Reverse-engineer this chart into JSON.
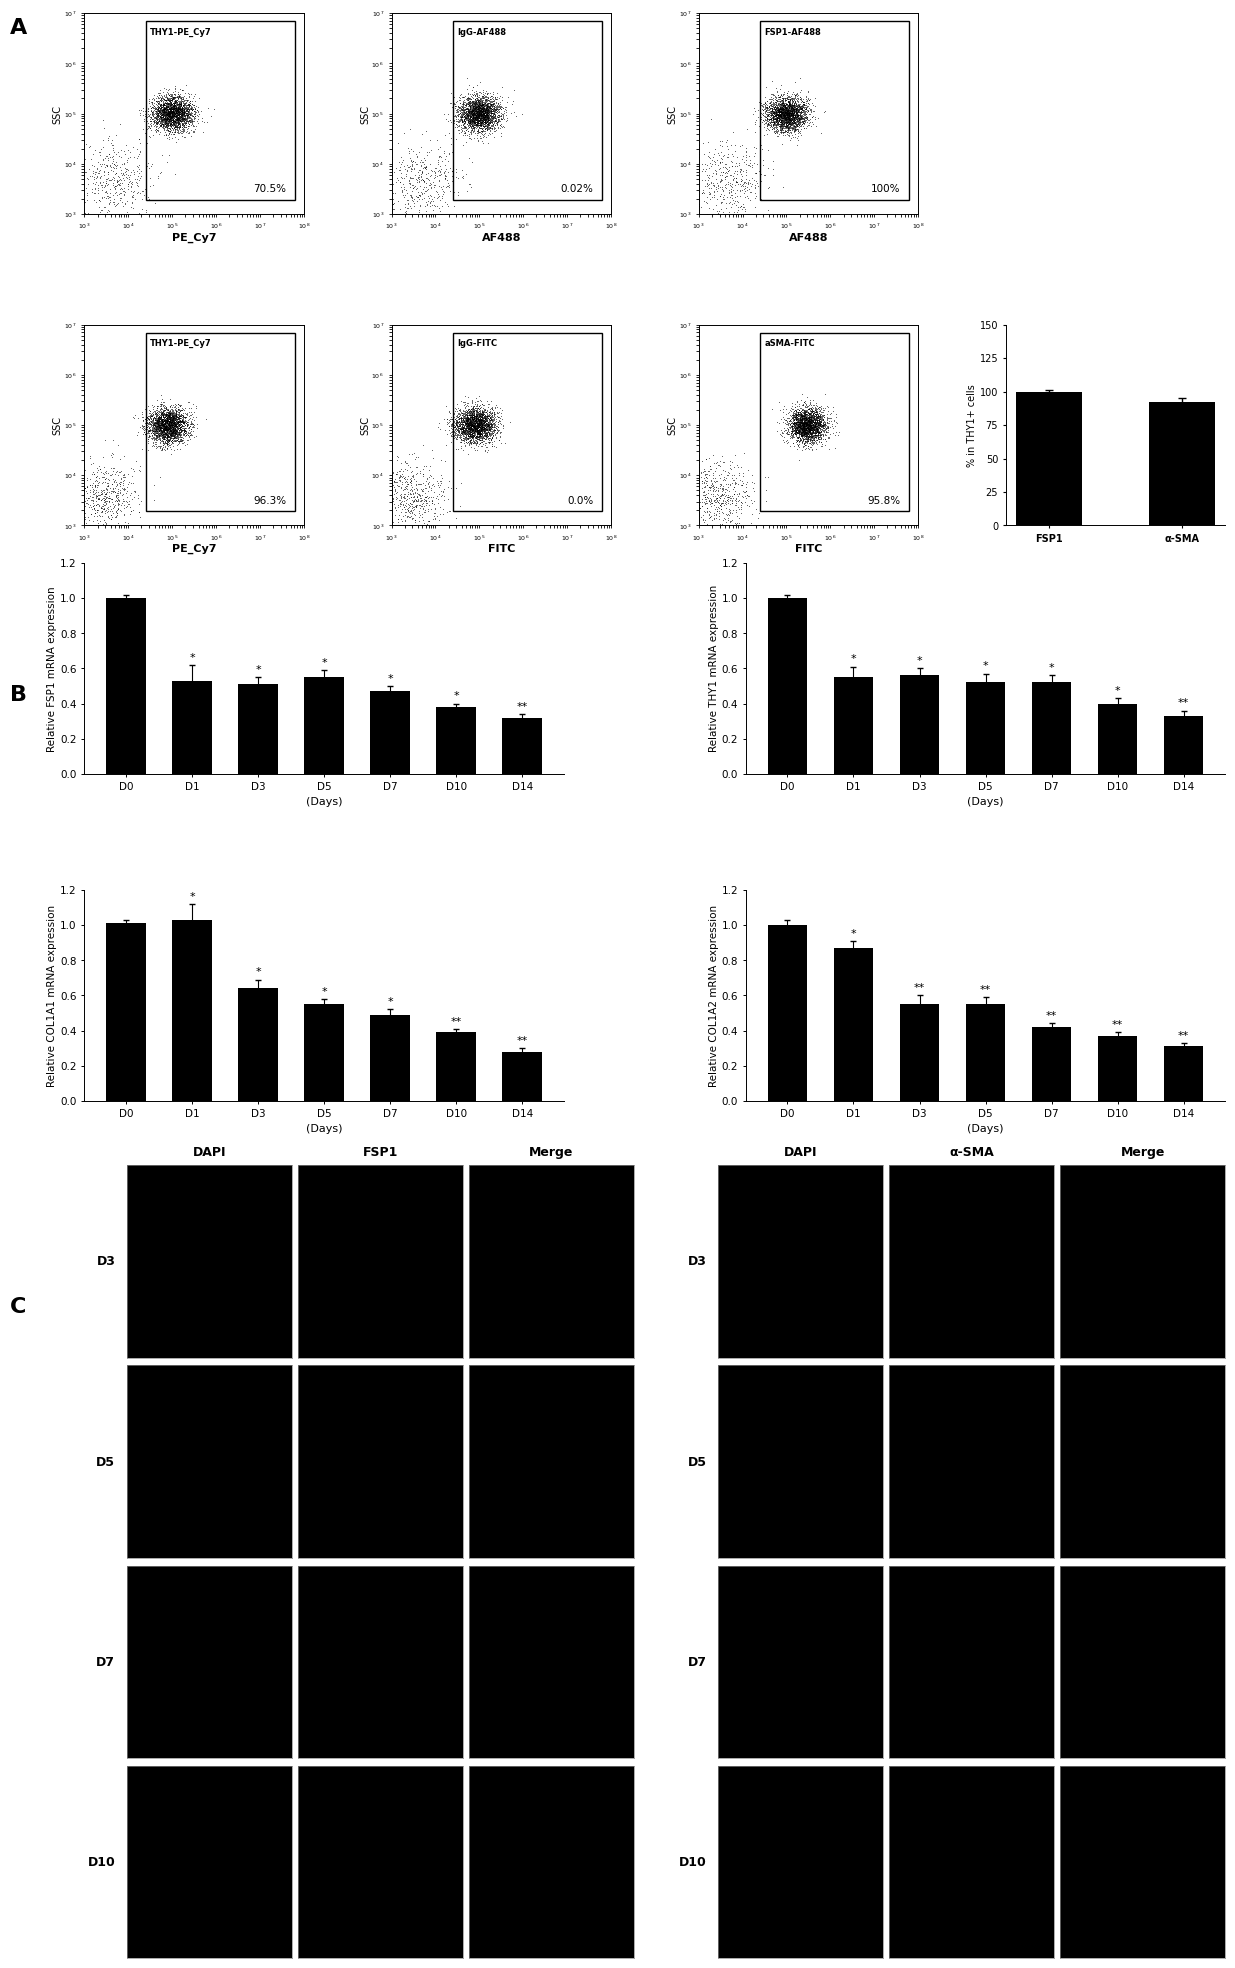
{
  "panel_A_label": "A",
  "panel_B_label": "B",
  "panel_C_label": "C",
  "flow_row1": [
    {
      "label_top": "THY1-PE_Cy7",
      "xlabel": "PE_Cy7",
      "pct": "70.5%"
    },
    {
      "label_top": "IgG-AF488",
      "xlabel": "AF488",
      "pct": "0.02%"
    },
    {
      "label_top": "FSP1-AF488",
      "xlabel": "AF488",
      "pct": "100%"
    }
  ],
  "flow_row2": [
    {
      "label_top": "THY1-PE_Cy7",
      "xlabel": "PE_Cy7",
      "pct": "96.3%"
    },
    {
      "label_top": "IgG-FITC",
      "xlabel": "FITC",
      "pct": "0.0%"
    },
    {
      "label_top": "aSMA-FITC",
      "xlabel": "FITC",
      "pct": "95.8%"
    }
  ],
  "bar_chart_fsp1": {
    "days": [
      "D0",
      "D1",
      "D3",
      "D5",
      "D7",
      "D10",
      "D14"
    ],
    "values": [
      1.0,
      0.53,
      0.51,
      0.55,
      0.47,
      0.38,
      0.32
    ],
    "errors": [
      0.02,
      0.09,
      0.04,
      0.04,
      0.03,
      0.02,
      0.02
    ],
    "sig": [
      "",
      "*",
      "*",
      "*",
      "*",
      "*",
      "**"
    ],
    "ylabel": "Relative FSP1 mRNA expression",
    "ylim": [
      0,
      1.2
    ],
    "yticks": [
      0.0,
      0.2,
      0.4,
      0.6,
      0.8,
      1.0,
      1.2
    ]
  },
  "bar_chart_thy1": {
    "days": [
      "D0",
      "D1",
      "D3",
      "D5",
      "D7",
      "D10",
      "D14"
    ],
    "values": [
      1.0,
      0.55,
      0.56,
      0.52,
      0.52,
      0.4,
      0.33
    ],
    "errors": [
      0.02,
      0.06,
      0.04,
      0.05,
      0.04,
      0.03,
      0.03
    ],
    "sig": [
      "",
      "*",
      "*",
      "*",
      "*",
      "*",
      "**"
    ],
    "ylabel": "Relative THY1 mRNA expression",
    "ylim": [
      0,
      1.2
    ],
    "yticks": [
      0.0,
      0.2,
      0.4,
      0.6,
      0.8,
      1.0,
      1.2
    ]
  },
  "bar_chart_col1a1": {
    "days": [
      "D0",
      "D1",
      "D3",
      "D5",
      "D7",
      "D10",
      "D14"
    ],
    "values": [
      1.01,
      1.03,
      0.64,
      0.55,
      0.49,
      0.39,
      0.28
    ],
    "errors": [
      0.02,
      0.09,
      0.05,
      0.03,
      0.03,
      0.02,
      0.02
    ],
    "sig": [
      "",
      "*",
      "*",
      "*",
      "*",
      "**",
      "**"
    ],
    "ylabel": "Relative COL1A1 mRNA expression",
    "ylim": [
      0,
      1.2
    ],
    "yticks": [
      0.0,
      0.2,
      0.4,
      0.6,
      0.8,
      1.0,
      1.2
    ]
  },
  "bar_chart_col1a2": {
    "days": [
      "D0",
      "D1",
      "D3",
      "D5",
      "D7",
      "D10",
      "D14"
    ],
    "values": [
      1.0,
      0.87,
      0.55,
      0.55,
      0.42,
      0.37,
      0.31
    ],
    "errors": [
      0.03,
      0.04,
      0.05,
      0.04,
      0.02,
      0.02,
      0.02
    ],
    "sig": [
      "",
      "*",
      "**",
      "**",
      "**",
      "**",
      "**"
    ],
    "ylabel": "Relative COL1A2 mRNA expression",
    "ylim": [
      0,
      1.2
    ],
    "yticks": [
      0.0,
      0.2,
      0.4,
      0.6,
      0.8,
      1.0,
      1.2
    ]
  },
  "bar_chart_summary": {
    "categories": [
      "FSP1",
      "α-SMA"
    ],
    "values": [
      100,
      92
    ],
    "errors": [
      1,
      3
    ],
    "ylabel": "% in THY1+ cells",
    "ylim": [
      0,
      150
    ],
    "yticks": [
      0,
      25,
      50,
      75,
      100,
      125,
      150
    ]
  },
  "micro_labels_left": [
    "D3",
    "D5",
    "D7",
    "D10"
  ],
  "micro_headers_left": [
    "DAPI",
    "FSP1",
    "Merge"
  ],
  "micro_labels_right": [
    "D3",
    "D5",
    "D7",
    "D10"
  ],
  "micro_headers_right": [
    "DAPI",
    "α-SMA",
    "Merge"
  ],
  "bar_color": "#000000",
  "bg_color": "#ffffff"
}
